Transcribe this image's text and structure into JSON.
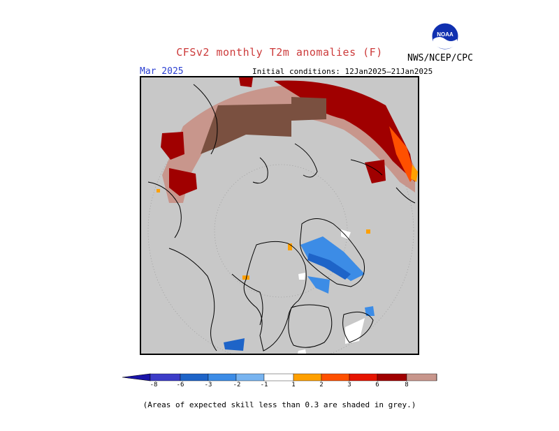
{
  "header": {
    "title": "CFSv2 monthly T2m anomalies (F)",
    "agency": "NWS/NCEP/CPC",
    "logo_text": "NOAA",
    "valid_month": "Mar 2025",
    "initial_conditions": "Initial conditions: 12Jan2025–21Jan2025"
  },
  "colorbar": {
    "ticks": [
      "-8",
      "-6",
      "-3",
      "-2",
      "-1",
      "1",
      "2",
      "3",
      "6",
      "8"
    ],
    "colors": [
      "#1a14a8",
      "#3c3cc8",
      "#1e64c8",
      "#3c8ce6",
      "#78b4f0",
      "#ffffff",
      "#ffa000",
      "#ff5000",
      "#e61400",
      "#a00000",
      "#c8968c",
      "#7a5040"
    ]
  },
  "colors": {
    "title": "#cc3a3a",
    "month": "#2b3fd1",
    "land_low_skill": "#c8c8c8"
  },
  "footnote": "(Areas of expected skill less than 0.3 are shaded in grey.)"
}
